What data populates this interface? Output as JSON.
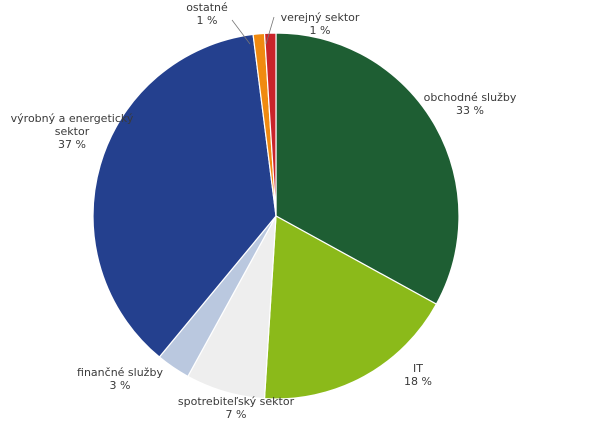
{
  "chart_data": {
    "type": "pie",
    "start_angle_deg": 0,
    "direction": "clockwise",
    "grid": false,
    "legend": "none",
    "slices": [
      {
        "name": "obchodné služby",
        "value": 33,
        "label": "33 %",
        "color": "#1e5e33"
      },
      {
        "name": "IT",
        "value": 18,
        "label": "18 %",
        "color": "#8bba1a"
      },
      {
        "name": "spotrebiteľský sektor",
        "value": 7,
        "label": "7 %",
        "color": "#eeeeee"
      },
      {
        "name": "finančné služby",
        "value": 3,
        "label": "3 %",
        "color": "#bac8df"
      },
      {
        "name": "výrobný a energetický sektor",
        "value": 37,
        "label": "37 %",
        "color": "#24408e"
      },
      {
        "name": "ostatné",
        "value": 1,
        "label": "1 %",
        "color": "#f08a10"
      },
      {
        "name": "verejný sektor",
        "value": 1,
        "label": "1 %",
        "color": "#c9242a"
      }
    ]
  }
}
